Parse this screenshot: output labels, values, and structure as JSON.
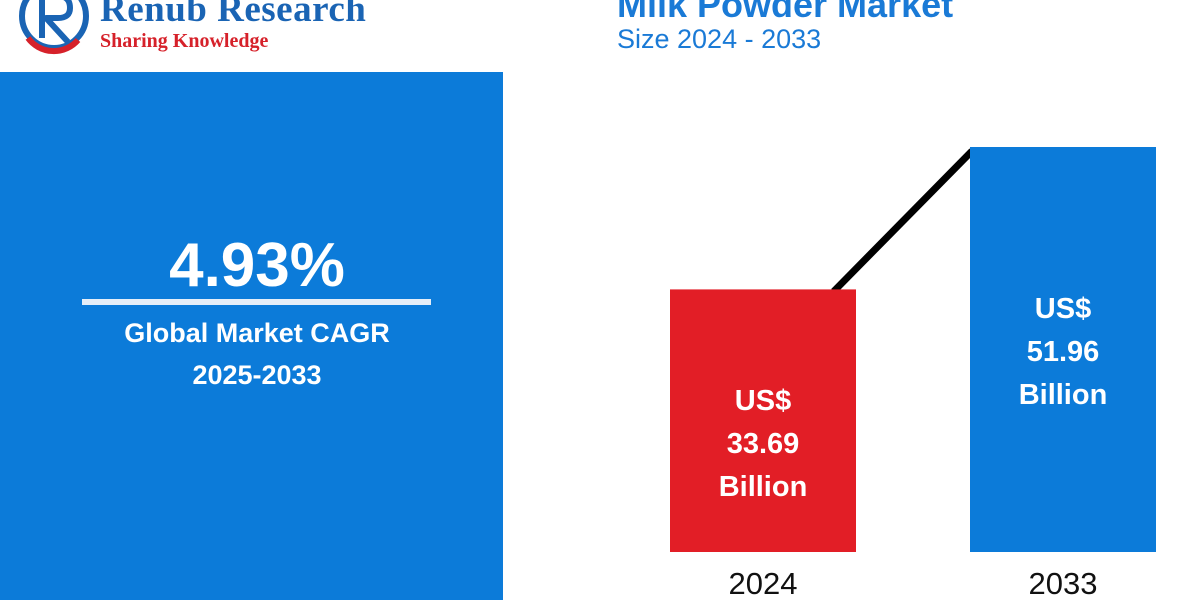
{
  "brand": {
    "name": "Renub Research",
    "tagline": "Sharing Knowledge",
    "colors": {
      "name": "#1a64b4",
      "tagline": "#d6212a"
    }
  },
  "header": {
    "title": "Milk Powder Market",
    "subtitle": "Size 2024 - 2033"
  },
  "cagr": {
    "value": "4.93%",
    "label_line1": "Global Market CAGR",
    "label_line2": "2025-2033",
    "panel_color": "#0c7bd9"
  },
  "chart_data": {
    "type": "bar",
    "title": "Milk Powder Market",
    "subtitle": "Size 2024 - 2033",
    "categories": [
      "2024",
      "2033"
    ],
    "values": [
      33.69,
      51.96
    ],
    "unit": "US$ Billion",
    "bar_labels": [
      [
        "US$",
        "33.69",
        "Billion"
      ],
      [
        "US$",
        "51.96",
        "Billion"
      ]
    ],
    "colors": [
      "#e21e26",
      "#0c7bd9"
    ],
    "trend_line": true,
    "grid": false,
    "xlabel": "",
    "ylabel": ""
  }
}
